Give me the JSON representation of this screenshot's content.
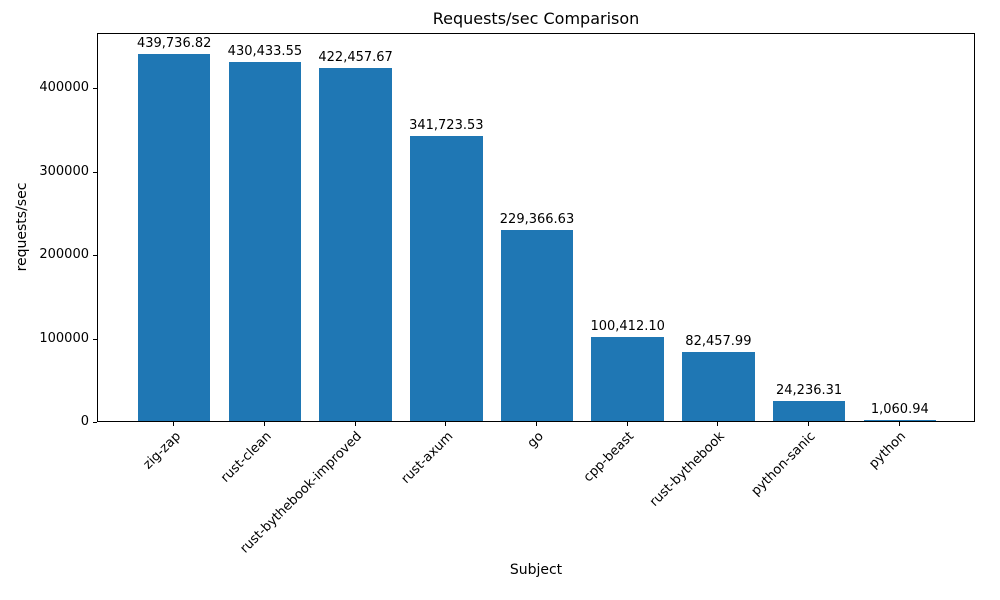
{
  "chart_data": {
    "type": "bar",
    "title": "Requests/sec Comparison",
    "xlabel": "Subject",
    "ylabel": "requests/sec",
    "categories": [
      "zig-zap",
      "rust-clean",
      "rust-bythebook-improved",
      "rust-axum",
      "go",
      "cpp-beast",
      "rust-bythebook",
      "python-sanic",
      "python"
    ],
    "values": [
      439736.82,
      430433.55,
      422457.67,
      341723.53,
      229366.63,
      100412.1,
      82457.99,
      24236.31,
      1060.94
    ],
    "value_labels": [
      "439,736.82",
      "430,433.55",
      "422,457.67",
      "341,723.53",
      "229,366.63",
      "100,412.10",
      "82,457.99",
      "24,236.31",
      "1,060.94"
    ],
    "ylim": [
      0,
      466000
    ],
    "yticks": [
      0,
      100000,
      200000,
      300000,
      400000
    ],
    "ytick_labels": [
      "0",
      "100000",
      "200000",
      "300000",
      "400000"
    ],
    "bar_color": "#1f77b4",
    "grid": false,
    "legend": null,
    "xtick_rotation_deg": 45
  }
}
